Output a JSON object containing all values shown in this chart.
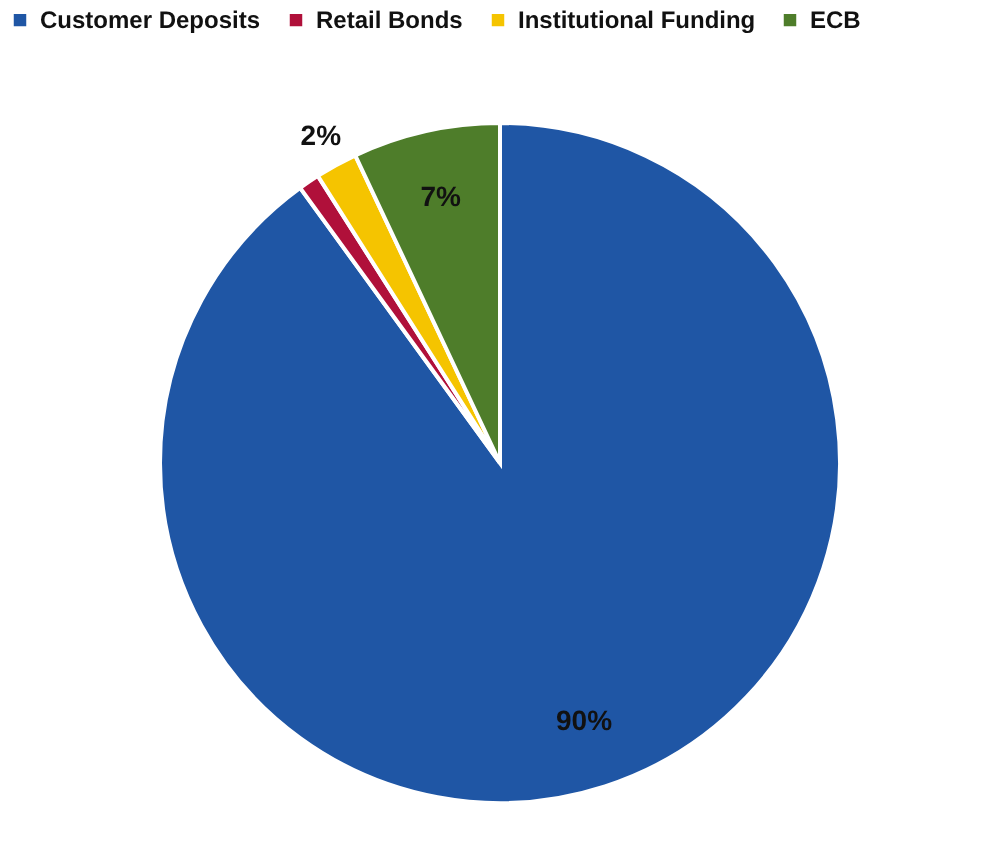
{
  "chart_data": {
    "type": "pie",
    "categories": [
      "Customer Deposits",
      "Retail Bonds",
      "Institutional Funding",
      "ECB"
    ],
    "values": [
      90,
      1,
      2,
      7
    ],
    "colors": [
      "#1f56a5",
      "#b0103a",
      "#f5c400",
      "#4e7d2a"
    ],
    "value_labels": [
      "90%",
      null,
      "2%",
      "7%"
    ],
    "legend": "top left"
  }
}
